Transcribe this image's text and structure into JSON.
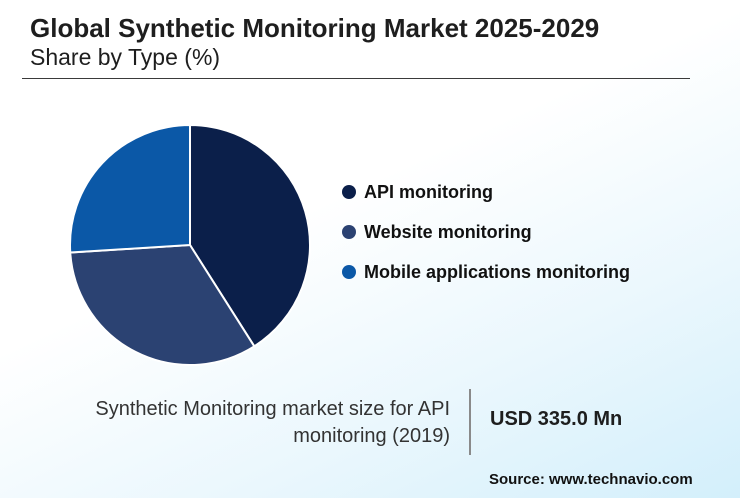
{
  "chart_data": {
    "type": "pie",
    "title": "Global Synthetic Monitoring Market 2025-2029",
    "subtitle": "Share by Type (%)",
    "slices": [
      {
        "name": "API monitoring",
        "value": 41,
        "color": "#0b1f4a"
      },
      {
        "name": "Website monitoring",
        "value": 33,
        "color": "#2b4272"
      },
      {
        "name": "Mobile applications monitoring",
        "value": 26,
        "color": "#0b58a7"
      }
    ],
    "legend_position": "right"
  },
  "footer": {
    "caption": "Synthetic Monitoring market size for API monitoring (2019)",
    "value": "USD 335.0 Mn",
    "source": "Source: www.technavio.com"
  }
}
